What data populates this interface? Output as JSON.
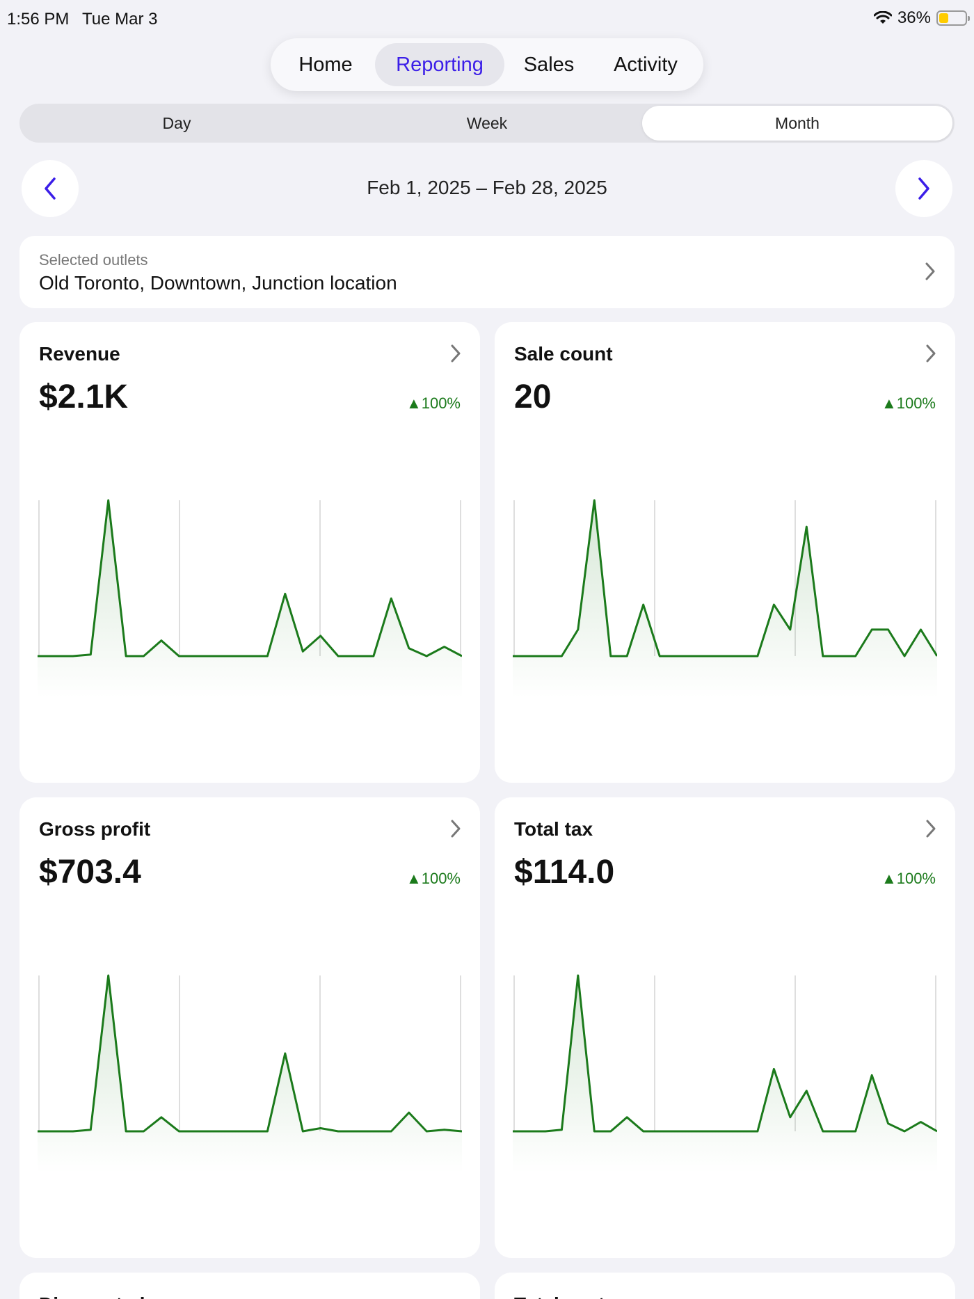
{
  "status": {
    "time": "1:56 PM",
    "date": "Tue Mar 3",
    "battery": "36%",
    "battery_level": 0.36
  },
  "top_tabs": [
    {
      "label": "Home",
      "active": false
    },
    {
      "label": "Reporting",
      "active": true
    },
    {
      "label": "Sales",
      "active": false
    },
    {
      "label": "Activity",
      "active": false
    }
  ],
  "period_tabs": [
    {
      "label": "Day",
      "active": false
    },
    {
      "label": "Week",
      "active": false
    },
    {
      "label": "Month",
      "active": true
    }
  ],
  "date_range": "Feb 1, 2025 – Feb 28, 2025",
  "outlets": {
    "label": "Selected outlets",
    "value": "Old Toronto, Downtown, Junction location"
  },
  "colors": {
    "accent": "#3b1ee8",
    "positive": "#1b7a1b",
    "background": "#f2f2f7"
  },
  "cards": [
    {
      "title": "Revenue",
      "value": "$2.1K",
      "delta": "▲100%"
    },
    {
      "title": "Sale count",
      "value": "20",
      "delta": "▲100%"
    },
    {
      "title": "Gross profit",
      "value": "$703.4",
      "delta": "▲100%"
    },
    {
      "title": "Total tax",
      "value": "$114.0",
      "delta": "▲100%"
    }
  ],
  "chart_data": [
    {
      "type": "area",
      "series": [
        {
          "values": [
            0,
            0,
            0,
            0.01,
            1,
            0,
            0,
            0.1,
            0,
            0,
            0,
            0,
            0,
            0,
            0.4,
            0.03,
            0.13,
            0,
            0,
            0,
            0.37,
            0.05,
            0,
            0.06,
            0
          ]
        }
      ]
    },
    {
      "type": "area",
      "series": [
        {
          "values": [
            0,
            0,
            0,
            0,
            0.17,
            1,
            0,
            0,
            0.33,
            0,
            0,
            0,
            0,
            0,
            0,
            0,
            0.33,
            0.17,
            0.83,
            0,
            0,
            0,
            0.17,
            0.17,
            0,
            0.17,
            0
          ]
        }
      ]
    },
    {
      "type": "area",
      "series": [
        {
          "values": [
            0,
            0,
            0,
            0.01,
            1,
            0,
            0,
            0.09,
            0,
            0,
            0,
            0,
            0,
            0,
            0.5,
            0,
            0.02,
            0,
            0,
            0,
            0,
            0.12,
            0,
            0.01,
            0
          ]
        }
      ]
    },
    {
      "type": "area",
      "series": [
        {
          "values": [
            0,
            0,
            0,
            0.01,
            1,
            0,
            0,
            0.09,
            0,
            0,
            0,
            0,
            0,
            0,
            0,
            0,
            0.4,
            0.09,
            0.26,
            0,
            0,
            0,
            0.36,
            0.05,
            0,
            0.06,
            0
          ]
        }
      ]
    }
  ],
  "footer_cards": [
    {
      "title": "Discounted"
    },
    {
      "title": "Total cost"
    }
  ]
}
